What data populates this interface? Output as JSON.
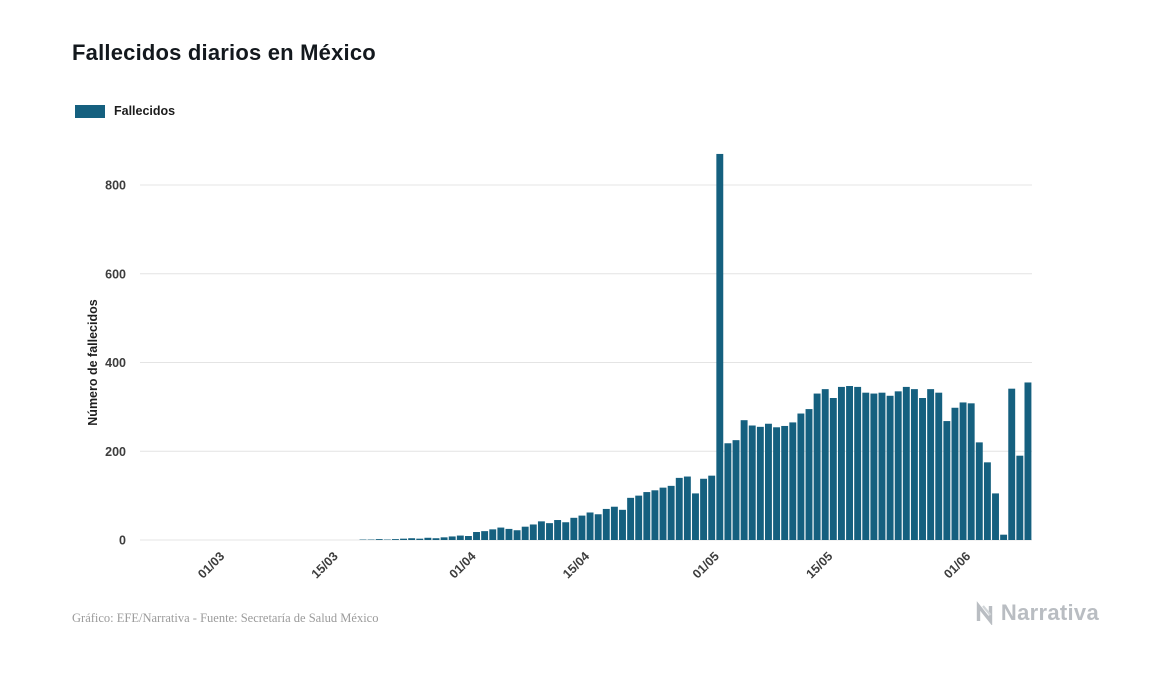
{
  "header": {
    "title": "Fallecidos diarios en México"
  },
  "legend": {
    "label": "Fallecidos"
  },
  "footer": {
    "credit": "Gráfico: EFE/Narrativa - Fuente: Secretaría de Salud México",
    "brand": "Narrativa"
  },
  "colors": {
    "bar": "#15607f",
    "grid": "#e4e4e4",
    "axis_text": "#3d3d3d",
    "title_text": "#13181d",
    "footer_text": "#9b9b9b",
    "brand": "#b9bdc2"
  },
  "chart_data": {
    "type": "bar",
    "title": "Fallecidos diarios en México",
    "xlabel": "",
    "ylabel": "Número de fallecidos",
    "ylim": [
      0,
      800
    ],
    "yticks": [
      0,
      200,
      400,
      600,
      800
    ],
    "xtick_labels": [
      "01/03",
      "15/03",
      "01/04",
      "15/04",
      "01/05",
      "15/05",
      "01/06"
    ],
    "grid": "horizontal",
    "legend_position": "top-left",
    "series_name": "Fallecidos",
    "dates": [
      "20/02",
      "21/02",
      "22/02",
      "23/02",
      "24/02",
      "25/02",
      "26/02",
      "27/02",
      "28/02",
      "29/02",
      "01/03",
      "02/03",
      "03/03",
      "04/03",
      "05/03",
      "06/03",
      "07/03",
      "08/03",
      "09/03",
      "10/03",
      "11/03",
      "12/03",
      "13/03",
      "14/03",
      "15/03",
      "16/03",
      "17/03",
      "18/03",
      "19/03",
      "20/03",
      "21/03",
      "22/03",
      "23/03",
      "24/03",
      "25/03",
      "26/03",
      "27/03",
      "28/03",
      "29/03",
      "30/03",
      "31/03",
      "01/04",
      "02/04",
      "03/04",
      "04/04",
      "05/04",
      "06/04",
      "07/04",
      "08/04",
      "09/04",
      "10/04",
      "11/04",
      "12/04",
      "13/04",
      "14/04",
      "15/04",
      "16/04",
      "17/04",
      "18/04",
      "19/04",
      "20/04",
      "21/04",
      "22/04",
      "23/04",
      "24/04",
      "25/04",
      "26/04",
      "27/04",
      "28/04",
      "29/04",
      "30/04",
      "01/05",
      "02/05",
      "03/05",
      "04/05",
      "05/05",
      "06/05",
      "07/05",
      "08/05",
      "09/05",
      "10/05",
      "11/05",
      "12/05",
      "13/05",
      "14/05",
      "15/05",
      "16/05",
      "17/05",
      "18/05",
      "19/05",
      "20/05",
      "21/05",
      "22/05",
      "23/05",
      "24/05",
      "25/05",
      "26/05",
      "27/05",
      "28/05",
      "29/05",
      "30/05",
      "31/05",
      "01/06",
      "02/06",
      "03/06",
      "04/06",
      "05/06",
      "06/06",
      "07/06",
      "08/06"
    ],
    "values": [
      0,
      0,
      0,
      0,
      0,
      0,
      0,
      0,
      0,
      0,
      0,
      0,
      0,
      0,
      0,
      0,
      0,
      0,
      0,
      0,
      0,
      0,
      0,
      0,
      0,
      0,
      0,
      1,
      1,
      2,
      1,
      2,
      3,
      4,
      3,
      5,
      4,
      6,
      8,
      10,
      9,
      18,
      20,
      24,
      28,
      25,
      22,
      30,
      35,
      42,
      38,
      45,
      40,
      50,
      55,
      62,
      58,
      70,
      75,
      68,
      95,
      100,
      108,
      112,
      118,
      122,
      140,
      143,
      105,
      138,
      145,
      870,
      218,
      225,
      270,
      258,
      255,
      262,
      254,
      257,
      265,
      285,
      295,
      330,
      340,
      320,
      345,
      347,
      345,
      332,
      330,
      332,
      325,
      335,
      345,
      340,
      320,
      340,
      332,
      268,
      298,
      310,
      308,
      220,
      175,
      105,
      12,
      341,
      190,
      355
    ]
  }
}
